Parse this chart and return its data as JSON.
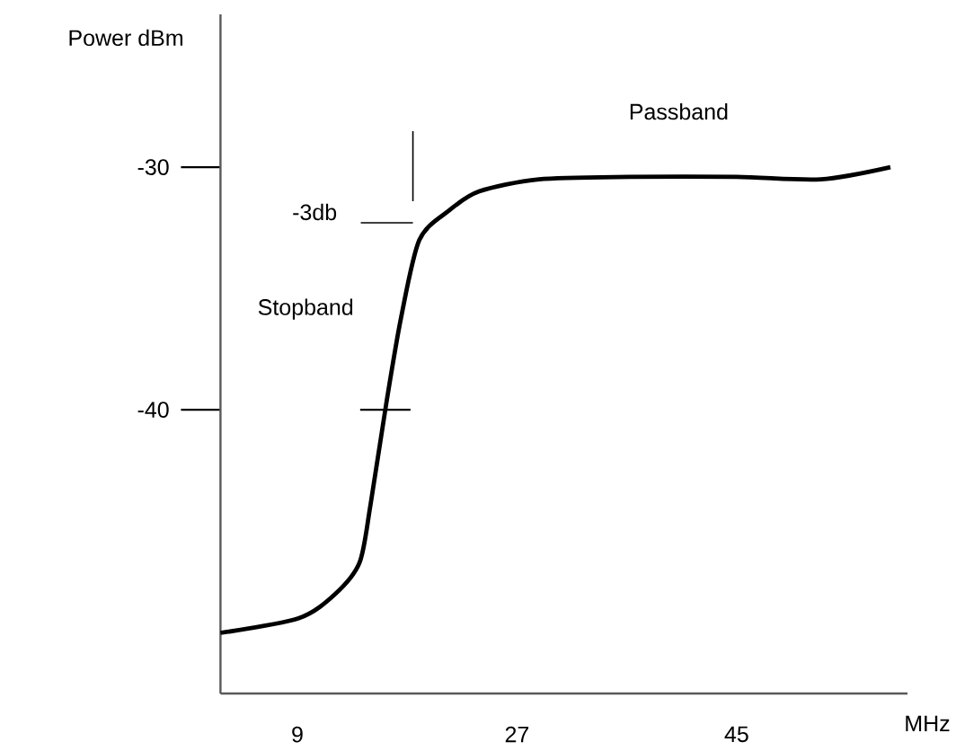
{
  "chart_data": {
    "type": "line",
    "xlabel": "MHz",
    "ylabel": "Power dBm",
    "xlim": [
      2.7,
      59
    ],
    "ylim": [
      -51.7,
      -23.7
    ],
    "xticks": [
      9,
      27,
      45
    ],
    "yticks": [
      {
        "value": -40,
        "label": "-40"
      },
      {
        "value": -30,
        "label": "-30"
      }
    ],
    "x": [
      2.7,
      9.1,
      12.1,
      14.1,
      15.0,
      16.3,
      17.5,
      19.0,
      21.4,
      23.9,
      28.8,
      36.2,
      45.0,
      51.9,
      57.6
    ],
    "series": [
      {
        "color": "#000000",
        "values": [
          -49.2,
          -48.6,
          -47.6,
          -46.3,
          -43.9,
          -39.7,
          -36.2,
          -33.0,
          -31.8,
          -31.0,
          -30.5,
          -30.4,
          -30.4,
          -30.5,
          -30.0
        ]
      }
    ],
    "annotations": [
      "Passband",
      "-3db",
      "Stopband"
    ]
  }
}
